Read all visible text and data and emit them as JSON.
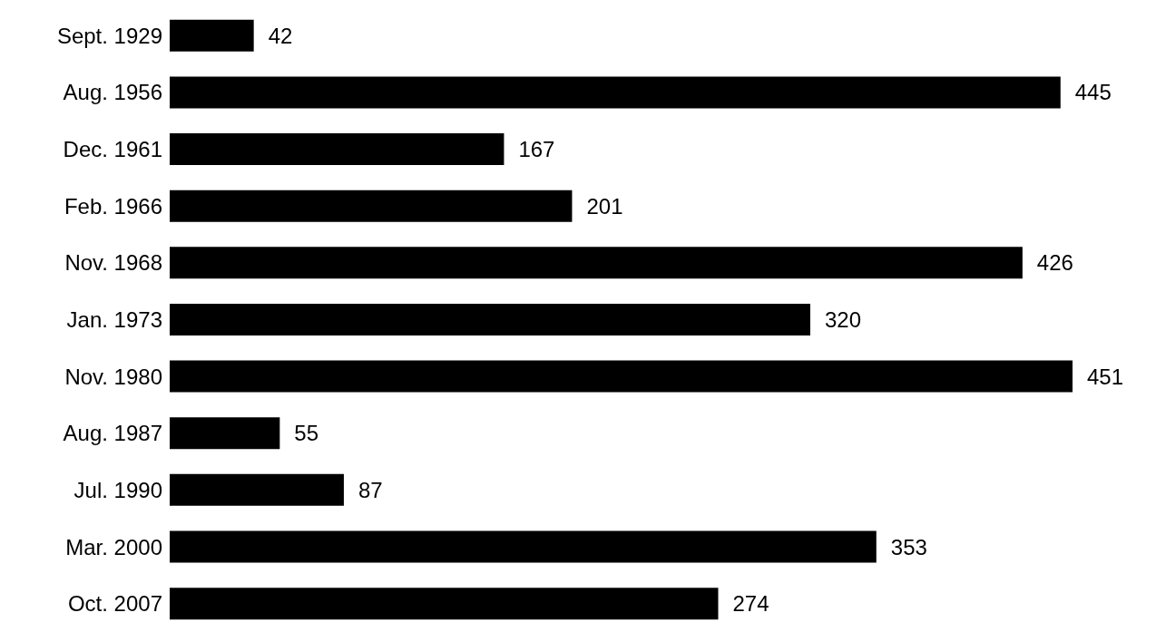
{
  "chart_data": {
    "type": "bar",
    "orientation": "horizontal",
    "categories": [
      "Sept. 1929",
      "Aug. 1956",
      "Dec. 1961",
      "Feb. 1966",
      "Nov. 1968",
      "Jan. 1973",
      "Nov. 1980",
      "Aug. 1987",
      "Jul. 1990",
      "Mar. 2000",
      "Oct. 2007"
    ],
    "values": [
      42,
      445,
      167,
      201,
      426,
      320,
      451,
      55,
      87,
      353,
      274
    ],
    "color": "#000000",
    "data_labels": true,
    "grid": false,
    "legend": false
  }
}
